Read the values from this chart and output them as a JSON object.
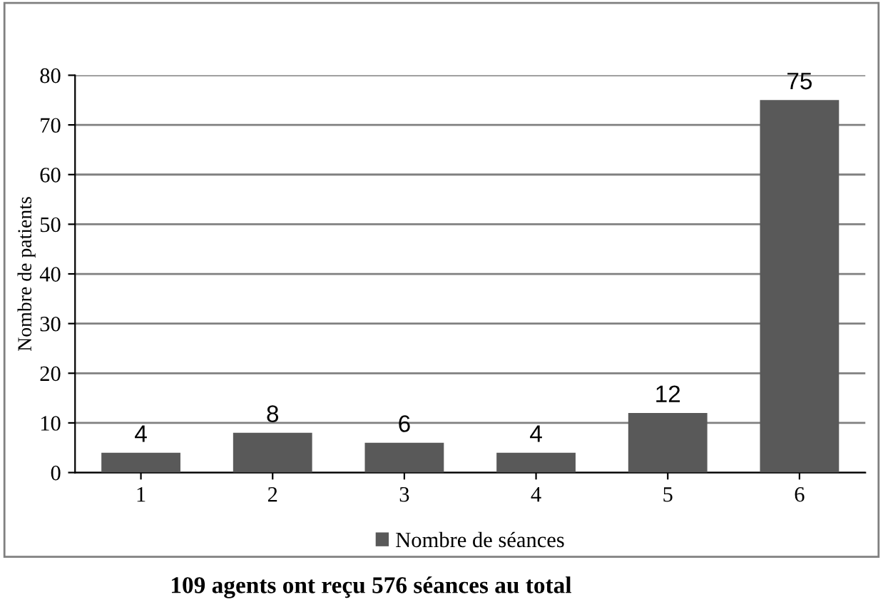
{
  "chart_data": {
    "type": "bar",
    "ylabel": "Nombre de patients",
    "categories": [
      "1",
      "2",
      "3",
      "4",
      "5",
      "6"
    ],
    "series": [
      {
        "name": "Nombre de séances",
        "color": "#595959",
        "values": [
          4,
          8,
          6,
          4,
          12,
          75
        ]
      }
    ],
    "ylim": [
      0,
      80
    ],
    "yticks": [
      0,
      10,
      20,
      30,
      40,
      50,
      60,
      70,
      80
    ],
    "grid": "y",
    "legend": "bottom",
    "data_labels": true,
    "annotations": [
      "109 agents ont reçu 576 séances au total"
    ]
  }
}
